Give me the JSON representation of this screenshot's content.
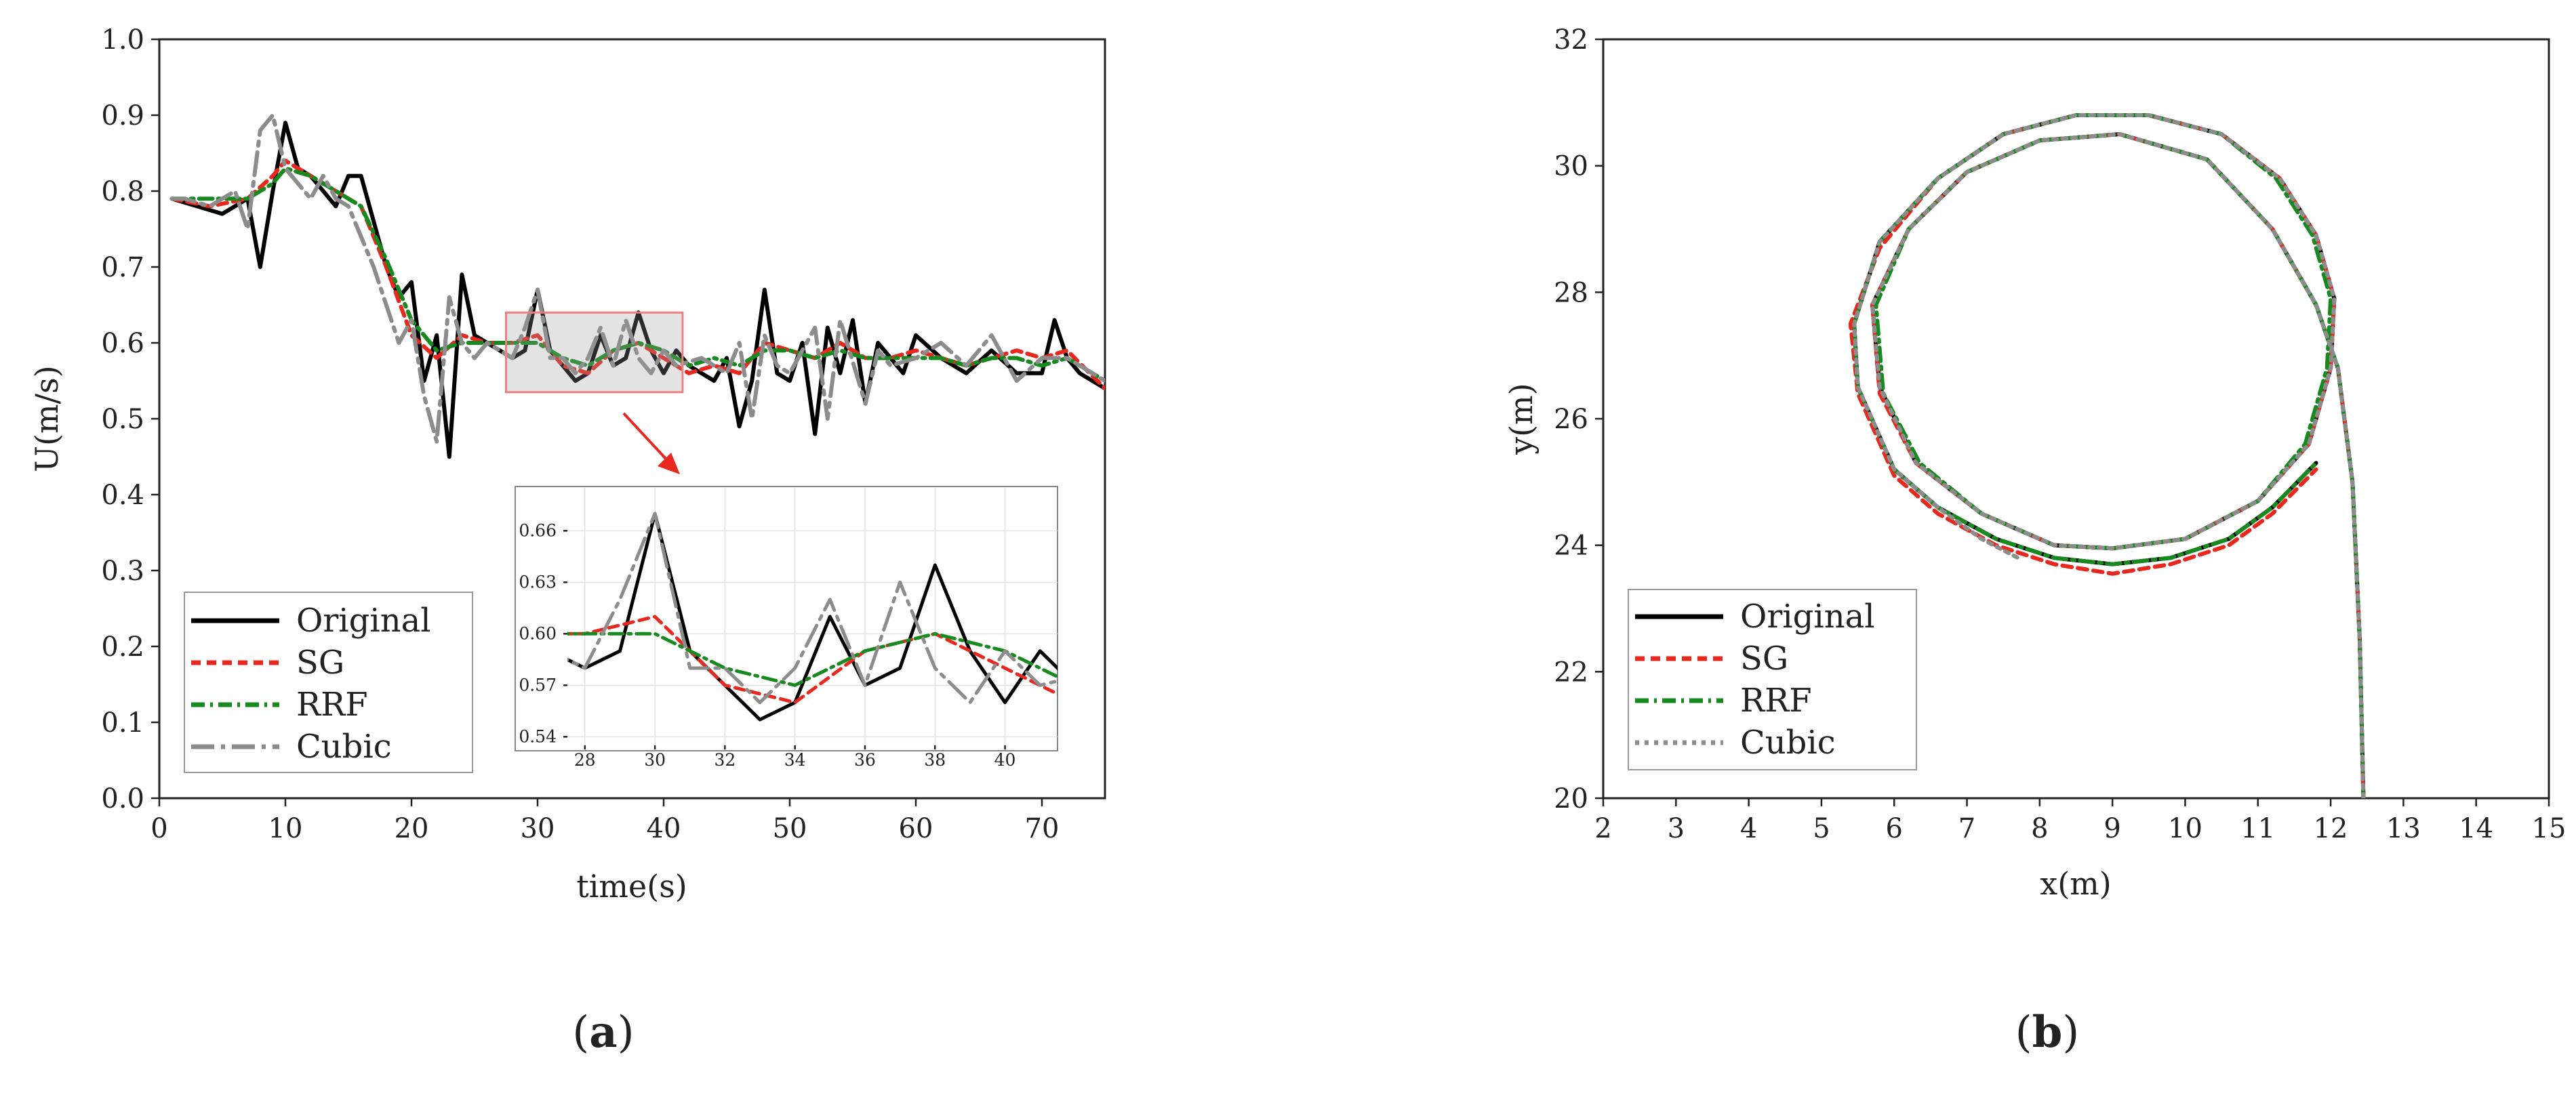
{
  "chart_data": [
    {
      "type": "line",
      "panel": "(a)",
      "xlabel": "time(s)",
      "ylabel": "U(m/s)",
      "xlim": [
        0,
        75
      ],
      "ylim": [
        0.0,
        1.0
      ],
      "xticks": [
        0,
        10,
        20,
        30,
        40,
        50,
        60,
        70
      ],
      "yticks": [
        0.0,
        0.1,
        0.2,
        0.3,
        0.4,
        0.5,
        0.6,
        0.7,
        0.8,
        0.9,
        1.0
      ],
      "grid": false,
      "legend_position": "bottom-left",
      "series": [
        {
          "name": "Original",
          "color": "#000000",
          "dash": "solid",
          "x": [
            1,
            3,
            5,
            7,
            8,
            9,
            10,
            11,
            12,
            13,
            14,
            15,
            16,
            18,
            19,
            20,
            21,
            22,
            23,
            24,
            25,
            26,
            27,
            28,
            29,
            30,
            31,
            32,
            33,
            34,
            35,
            36,
            37,
            38,
            39,
            40,
            41,
            42,
            43,
            44,
            45,
            46,
            47,
            48,
            49,
            50,
            51,
            52,
            53,
            54,
            55,
            56,
            57,
            58,
            59,
            60,
            62,
            64,
            66,
            68,
            70,
            71,
            72,
            73,
            75
          ],
          "y": [
            0.79,
            0.78,
            0.77,
            0.79,
            0.7,
            0.8,
            0.89,
            0.83,
            0.82,
            0.8,
            0.78,
            0.82,
            0.82,
            0.7,
            0.66,
            0.68,
            0.55,
            0.61,
            0.45,
            0.69,
            0.61,
            0.6,
            0.59,
            0.58,
            0.59,
            0.67,
            0.59,
            0.57,
            0.55,
            0.56,
            0.61,
            0.57,
            0.58,
            0.64,
            0.59,
            0.56,
            0.59,
            0.57,
            0.56,
            0.55,
            0.58,
            0.49,
            0.55,
            0.67,
            0.56,
            0.55,
            0.6,
            0.48,
            0.62,
            0.56,
            0.63,
            0.52,
            0.6,
            0.58,
            0.56,
            0.61,
            0.58,
            0.56,
            0.59,
            0.56,
            0.56,
            0.63,
            0.58,
            0.56,
            0.54
          ]
        },
        {
          "name": "SG",
          "color": "#e8281e",
          "dash": "dashed",
          "x": [
            1,
            4,
            7,
            9,
            10,
            12,
            14,
            16,
            18,
            20,
            22,
            24,
            26,
            28,
            30,
            32,
            34,
            36,
            38,
            40,
            42,
            44,
            46,
            48,
            50,
            52,
            54,
            56,
            58,
            60,
            62,
            64,
            66,
            68,
            70,
            72,
            75
          ],
          "y": [
            0.79,
            0.78,
            0.79,
            0.82,
            0.84,
            0.82,
            0.8,
            0.78,
            0.7,
            0.61,
            0.58,
            0.61,
            0.6,
            0.6,
            0.61,
            0.57,
            0.56,
            0.59,
            0.6,
            0.58,
            0.56,
            0.57,
            0.56,
            0.6,
            0.59,
            0.58,
            0.6,
            0.58,
            0.58,
            0.59,
            0.58,
            0.57,
            0.58,
            0.59,
            0.58,
            0.59,
            0.54
          ]
        },
        {
          "name": "RRF",
          "color": "#168a1e",
          "dash": "dashdot",
          "x": [
            1,
            4,
            7,
            9,
            10,
            12,
            14,
            16,
            18,
            20,
            22,
            24,
            26,
            28,
            30,
            32,
            34,
            36,
            38,
            40,
            42,
            44,
            46,
            48,
            50,
            52,
            54,
            56,
            58,
            60,
            62,
            64,
            66,
            68,
            70,
            72,
            75
          ],
          "y": [
            0.79,
            0.79,
            0.79,
            0.81,
            0.83,
            0.82,
            0.8,
            0.78,
            0.71,
            0.63,
            0.59,
            0.6,
            0.6,
            0.6,
            0.6,
            0.58,
            0.57,
            0.59,
            0.6,
            0.59,
            0.57,
            0.58,
            0.57,
            0.59,
            0.59,
            0.58,
            0.59,
            0.58,
            0.58,
            0.58,
            0.58,
            0.57,
            0.58,
            0.58,
            0.57,
            0.58,
            0.55
          ]
        },
        {
          "name": "Cubic",
          "color": "#8c8c8c",
          "dash": "longdashdot",
          "x": [
            1,
            2,
            4,
            6,
            7,
            8,
            9,
            10,
            11,
            12,
            13,
            14,
            15,
            17,
            19,
            20,
            21,
            22,
            23,
            24,
            25,
            26,
            28,
            29,
            30,
            31,
            32,
            33,
            34,
            35,
            36,
            37,
            38,
            39,
            40,
            41,
            43,
            45,
            46,
            47,
            48,
            49,
            50,
            52,
            53,
            54,
            56,
            57,
            58,
            60,
            62,
            64,
            66,
            68,
            70,
            72,
            75
          ],
          "y": [
            0.79,
            0.79,
            0.78,
            0.8,
            0.75,
            0.88,
            0.9,
            0.83,
            0.81,
            0.79,
            0.82,
            0.79,
            0.78,
            0.7,
            0.6,
            0.63,
            0.53,
            0.47,
            0.66,
            0.6,
            0.58,
            0.6,
            0.58,
            0.62,
            0.67,
            0.58,
            0.58,
            0.56,
            0.58,
            0.62,
            0.57,
            0.63,
            0.58,
            0.56,
            0.59,
            0.57,
            0.58,
            0.56,
            0.6,
            0.5,
            0.61,
            0.57,
            0.56,
            0.62,
            0.5,
            0.63,
            0.52,
            0.59,
            0.57,
            0.58,
            0.6,
            0.57,
            0.61,
            0.55,
            0.58,
            0.58,
            0.55
          ]
        }
      ],
      "inset": {
        "xlim": [
          27.5,
          41.5
        ],
        "ylim": [
          0.535,
          0.685
        ],
        "xticks": [
          28,
          30,
          32,
          34,
          36,
          38,
          40
        ],
        "yticks": [
          0.54,
          0.57,
          0.6,
          0.63,
          0.66
        ],
        "grid": true,
        "source_region": {
          "x": [
            27.5,
            41.5
          ],
          "y": [
            0.535,
            0.64
          ]
        }
      }
    },
    {
      "type": "line",
      "panel": "(b)",
      "xlabel": "x(m)",
      "ylabel": "y(m)",
      "xlim": [
        2,
        15
      ],
      "ylim": [
        20,
        32
      ],
      "xticks": [
        2,
        3,
        4,
        5,
        6,
        7,
        8,
        9,
        10,
        11,
        12,
        13,
        14,
        15
      ],
      "yticks": [
        20,
        22,
        24,
        26,
        28,
        30,
        32
      ],
      "grid": false,
      "legend_position": "bottom-left",
      "series": [
        {
          "name": "Original",
          "color": "#000000",
          "dash": "solid",
          "x": [
            12.45,
            12.4,
            12.3,
            12.1,
            11.8,
            11.2,
            10.3,
            9.1,
            8.0,
            7.0,
            6.2,
            5.7,
            5.8,
            6.3,
            7.2,
            8.2,
            9.0,
            10.0,
            11.0,
            11.7,
            12.0,
            12.05,
            11.8,
            11.3,
            10.5,
            9.5,
            8.5,
            7.5,
            6.6,
            5.8,
            5.45,
            5.5,
            6.0,
            6.6,
            7.4,
            8.2,
            9.0,
            9.8,
            10.6,
            11.2,
            11.8
          ],
          "y": [
            20.0,
            22.5,
            25.0,
            26.8,
            27.8,
            29.0,
            30.1,
            30.5,
            30.4,
            29.9,
            29.0,
            27.8,
            26.5,
            25.3,
            24.5,
            24.0,
            23.95,
            24.1,
            24.7,
            25.6,
            26.8,
            27.9,
            28.9,
            29.8,
            30.5,
            30.8,
            30.8,
            30.5,
            29.8,
            28.8,
            27.5,
            26.5,
            25.2,
            24.6,
            24.1,
            23.8,
            23.7,
            23.8,
            24.1,
            24.6,
            25.3
          ]
        },
        {
          "name": "SG",
          "color": "#e8281e",
          "dash": "dashed",
          "x": [
            12.45,
            12.4,
            12.3,
            12.1,
            11.8,
            11.2,
            10.3,
            9.1,
            8.0,
            7.0,
            6.2,
            5.7,
            5.8,
            6.3,
            7.2,
            8.2,
            9.0,
            10.0,
            11.0,
            11.7,
            12.0,
            12.05,
            11.8,
            11.3,
            10.5,
            9.5,
            8.5,
            7.5,
            6.6,
            5.8,
            5.4,
            5.5,
            6.0,
            6.6,
            7.4,
            8.2,
            9.0,
            9.8,
            10.6,
            11.2,
            11.8
          ],
          "y": [
            20.0,
            22.5,
            25.0,
            26.8,
            27.8,
            29.0,
            30.1,
            30.5,
            30.4,
            29.9,
            29.0,
            27.8,
            26.4,
            25.3,
            24.5,
            24.0,
            23.95,
            24.1,
            24.7,
            25.6,
            26.8,
            27.9,
            28.9,
            29.8,
            30.5,
            30.8,
            30.8,
            30.5,
            29.8,
            28.7,
            27.5,
            26.4,
            25.1,
            24.5,
            24.0,
            23.7,
            23.55,
            23.7,
            24.0,
            24.5,
            25.2
          ]
        },
        {
          "name": "RRF",
          "color": "#168a1e",
          "dash": "dashdot",
          "x": [
            12.45,
            12.4,
            12.3,
            12.1,
            11.8,
            11.2,
            10.3,
            9.1,
            8.0,
            7.0,
            6.2,
            5.75,
            5.85,
            6.35,
            7.2,
            8.2,
            9.0,
            10.0,
            11.0,
            11.65,
            11.95,
            12.0,
            11.75,
            11.25,
            10.5,
            9.5,
            8.5,
            7.5,
            6.6,
            5.8,
            5.45,
            5.5,
            6.0,
            6.6,
            7.4,
            8.2,
            9.0,
            9.8,
            10.6,
            11.2,
            11.8
          ],
          "y": [
            20.0,
            22.5,
            25.0,
            26.8,
            27.8,
            29.0,
            30.1,
            30.5,
            30.4,
            29.9,
            29.0,
            27.8,
            26.4,
            25.3,
            24.5,
            24.0,
            23.95,
            24.1,
            24.7,
            25.6,
            26.8,
            27.9,
            28.9,
            29.8,
            30.5,
            30.8,
            30.8,
            30.5,
            29.8,
            28.8,
            27.5,
            26.5,
            25.2,
            24.6,
            24.1,
            23.8,
            23.7,
            23.8,
            24.1,
            24.6,
            25.3
          ]
        },
        {
          "name": "Cubic",
          "color": "#8c8c8c",
          "dash": "dotted",
          "x": [
            12.45,
            12.4,
            12.3,
            12.1,
            11.8,
            11.2,
            10.3,
            9.1,
            8.0,
            7.0,
            6.2,
            5.7,
            5.8,
            6.3,
            7.2,
            8.2,
            9.0,
            10.0,
            11.0,
            11.7,
            12.0,
            12.05,
            11.8,
            11.3,
            10.5,
            9.5,
            8.5,
            7.5,
            6.6,
            5.8,
            5.45,
            5.5,
            6.0,
            6.6,
            7.2,
            7.7
          ],
          "y": [
            20.0,
            22.5,
            25.0,
            26.8,
            27.8,
            29.0,
            30.1,
            30.5,
            30.4,
            29.9,
            29.0,
            27.8,
            26.5,
            25.3,
            24.5,
            24.0,
            23.95,
            24.1,
            24.7,
            25.6,
            26.8,
            27.9,
            28.9,
            29.8,
            30.5,
            30.8,
            30.8,
            30.5,
            29.8,
            28.8,
            27.5,
            26.5,
            25.2,
            24.6,
            24.1,
            23.8
          ]
        }
      ]
    }
  ],
  "captions": {
    "a_open": "(",
    "a_letter": "a",
    "a_close": ")",
    "b_open": "(",
    "b_letter": "b",
    "b_close": ")"
  }
}
